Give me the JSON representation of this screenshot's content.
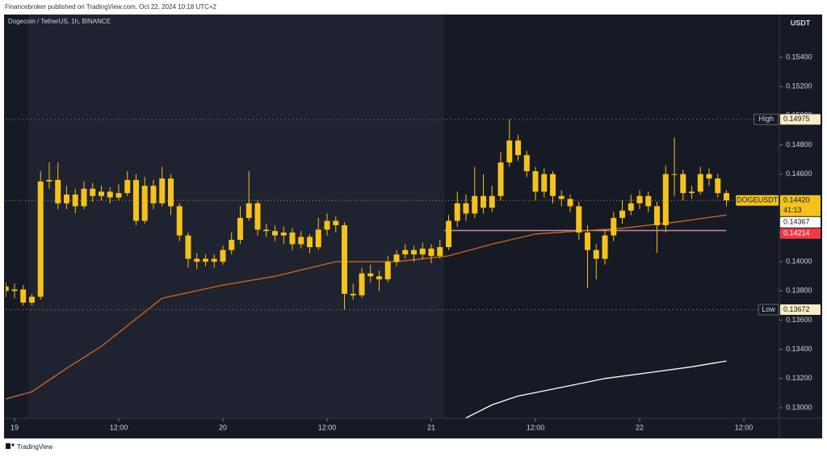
{
  "header": "Financebroker published on TradingView.com, Oct 22, 2024 10:18 UTC+2",
  "footer": "TradingView",
  "chart_data": {
    "type": "candlestick",
    "title": "Dogecoin / TetherUS, 1h, BINANCE",
    "currency": "USDT",
    "color": "#f5c21b",
    "xlim": [
      -1.02,
      88.09
    ],
    "xticks": [
      {
        "value": 0,
        "label": "19"
      },
      {
        "value": 12,
        "label": "12:00"
      },
      {
        "value": 24,
        "label": "20"
      },
      {
        "value": 36,
        "label": "12:00"
      },
      {
        "value": 48,
        "label": "21"
      },
      {
        "value": 60,
        "label": "12:00"
      },
      {
        "value": 72,
        "label": "22"
      },
      {
        "value": 84,
        "label": "12:00"
      }
    ],
    "ylim": [
      0.12928,
      0.15693
    ],
    "yticks": [
      {
        "value": 0.13,
        "label": "0.13000"
      },
      {
        "value": 0.132,
        "label": "0.13200"
      },
      {
        "value": 0.134,
        "label": "0.13400"
      },
      {
        "value": 0.136,
        "label": "0.13600"
      },
      {
        "value": 0.138,
        "label": "0.13800"
      },
      {
        "value": 0.14,
        "label": "0.14000"
      },
      {
        "value": 0.142,
        "label": "0.14200"
      },
      {
        "value": 0.144,
        "label": "0.14400"
      },
      {
        "value": 0.146,
        "label": "0.14600"
      },
      {
        "value": 0.148,
        "label": "0.14800"
      },
      {
        "value": 0.15,
        "label": "0.15000"
      },
      {
        "value": 0.152,
        "label": "0.15200"
      },
      {
        "value": 0.154,
        "label": "0.15400"
      }
    ],
    "x": [
      -1,
      0,
      1,
      2,
      3,
      4,
      5,
      6,
      7,
      8,
      9,
      10,
      11,
      12,
      13,
      14,
      15,
      16,
      17,
      18,
      19,
      20,
      21,
      22,
      23,
      24,
      25,
      26,
      27,
      28,
      29,
      30,
      31,
      32,
      33,
      34,
      35,
      36,
      37,
      38,
      39,
      40,
      41,
      42,
      43,
      44,
      45,
      46,
      47,
      48,
      49,
      50,
      51,
      52,
      53,
      54,
      55,
      56,
      57,
      58,
      59,
      60,
      61,
      62,
      63,
      64,
      65,
      66,
      67,
      68,
      69,
      70,
      71,
      72,
      73,
      74,
      75,
      76,
      77,
      78,
      79,
      80,
      81,
      82
    ],
    "open": [
      0.1383,
      0.138,
      0.1381,
      0.1372,
      0.1376,
      0.1455,
      0.1456,
      0.144,
      0.1446,
      0.1438,
      0.145,
      0.1445,
      0.1448,
      0.1444,
      0.1447,
      0.1456,
      0.1428,
      0.1452,
      0.144,
      0.1457,
      0.1438,
      0.1418,
      0.1402,
      0.14,
      0.1402,
      0.14,
      0.1408,
      0.1415,
      0.143,
      0.144,
      0.1422,
      0.1421,
      0.1418,
      0.142,
      0.1412,
      0.1417,
      0.141,
      0.1422,
      0.1428,
      0.1425,
      0.1378,
      0.1377,
      0.1392,
      0.139,
      0.1388,
      0.14,
      0.1405,
      0.1408,
      0.1405,
      0.1409,
      0.1404,
      0.141,
      0.1428,
      0.144,
      0.1433,
      0.1445,
      0.1437,
      0.1445,
      0.1468,
      0.1483,
      0.1473,
      0.1462,
      0.1448,
      0.146,
      0.1445,
      0.1443,
      0.1438,
      0.142,
      0.1408,
      0.1402,
      0.1418,
      0.143,
      0.1435,
      0.144,
      0.1445,
      0.1438,
      0.1425,
      0.146,
      0.146,
      0.1447,
      0.1448,
      0.146,
      0.1457,
      0.1447
    ],
    "high": [
      0.1386,
      0.1385,
      0.1384,
      0.1378,
      0.1462,
      0.1468,
      0.1468,
      0.1452,
      0.145,
      0.1455,
      0.1454,
      0.1452,
      0.1451,
      0.1453,
      0.1462,
      0.146,
      0.1458,
      0.1456,
      0.1465,
      0.146,
      0.144,
      0.142,
      0.1406,
      0.1405,
      0.1405,
      0.1411,
      0.142,
      0.1438,
      0.1462,
      0.1442,
      0.1426,
      0.1425,
      0.1424,
      0.1423,
      0.1421,
      0.1419,
      0.143,
      0.1433,
      0.1431,
      0.1427,
      0.1385,
      0.1396,
      0.1398,
      0.1394,
      0.1404,
      0.1408,
      0.1412,
      0.1411,
      0.1413,
      0.1412,
      0.1415,
      0.1432,
      0.1448,
      0.1446,
      0.1465,
      0.146,
      0.1452,
      0.1475,
      0.14975,
      0.1487,
      0.1476,
      0.1465,
      0.1464,
      0.1462,
      0.1449,
      0.1446,
      0.1441,
      0.1425,
      0.1412,
      0.1422,
      0.1434,
      0.1442,
      0.1446,
      0.1449,
      0.1448,
      0.1441,
      0.1466,
      0.1485,
      0.1463,
      0.1452,
      0.1465,
      0.1464,
      0.146,
      0.1449
    ],
    "low": [
      0.1376,
      0.1375,
      0.137,
      0.137,
      0.1374,
      0.145,
      0.1436,
      0.1436,
      0.1433,
      0.1436,
      0.1441,
      0.1442,
      0.144,
      0.1442,
      0.1445,
      0.1425,
      0.1426,
      0.1436,
      0.1438,
      0.1432,
      0.1414,
      0.1396,
      0.1395,
      0.1397,
      0.1396,
      0.1398,
      0.1405,
      0.1412,
      0.1428,
      0.1418,
      0.1417,
      0.1414,
      0.1412,
      0.1408,
      0.1409,
      0.1406,
      0.1408,
      0.1418,
      0.142,
      0.13672,
      0.1374,
      0.1375,
      0.1386,
      0.138,
      0.1386,
      0.1397,
      0.1402,
      0.14,
      0.1402,
      0.1399,
      0.1402,
      0.1408,
      0.1424,
      0.1428,
      0.143,
      0.1433,
      0.1434,
      0.1442,
      0.1465,
      0.1469,
      0.1458,
      0.1442,
      0.1444,
      0.144,
      0.1438,
      0.1434,
      0.1415,
      0.1382,
      0.1388,
      0.1398,
      0.1414,
      0.1426,
      0.1432,
      0.1436,
      0.1434,
      0.1406,
      0.142,
      0.1445,
      0.1442,
      0.1443,
      0.1446,
      0.1452,
      0.1444,
      0.1438
    ],
    "close": [
      0.138,
      0.1381,
      0.1372,
      0.1376,
      0.1455,
      0.1456,
      0.144,
      0.1446,
      0.1438,
      0.145,
      0.1445,
      0.1448,
      0.1444,
      0.1447,
      0.1456,
      0.1428,
      0.1452,
      0.144,
      0.1457,
      0.1438,
      0.1418,
      0.1402,
      0.14,
      0.1402,
      0.14,
      0.1408,
      0.1415,
      0.143,
      0.144,
      0.1422,
      0.1421,
      0.1418,
      0.142,
      0.1412,
      0.1417,
      0.141,
      0.1422,
      0.1428,
      0.1425,
      0.1378,
      0.1377,
      0.1392,
      0.139,
      0.1388,
      0.14,
      0.1405,
      0.1408,
      0.1405,
      0.1409,
      0.1404,
      0.141,
      0.1428,
      0.144,
      0.1433,
      0.1445,
      0.1437,
      0.1445,
      0.1468,
      0.1483,
      0.1473,
      0.1462,
      0.1448,
      0.146,
      0.1445,
      0.1443,
      0.1438,
      0.142,
      0.1408,
      0.1402,
      0.1418,
      0.143,
      0.1435,
      0.144,
      0.1445,
      0.1438,
      0.1425,
      0.146,
      0.146,
      0.1447,
      0.1448,
      0.146,
      0.1457,
      0.1447,
      0.1442
    ],
    "lines": [
      {
        "color": "#d2691e",
        "x": [
          -1,
          2,
          6,
          10,
          17,
          24,
          30,
          37,
          44,
          50,
          55,
          60,
          65,
          70,
          76,
          82
        ],
        "values": [
          0.1306,
          0.1311,
          0.1327,
          0.1342,
          0.1375,
          0.1384,
          0.139,
          0.14,
          0.14,
          0.1404,
          0.1412,
          0.1419,
          0.1421,
          0.1423,
          0.1427,
          0.1432
        ]
      },
      {
        "color": "#ffffff",
        "x": [
          52,
          55,
          58,
          63,
          68,
          73,
          78,
          82
        ],
        "values": [
          0.1293,
          0.1302,
          0.1308,
          0.1314,
          0.132,
          0.1324,
          0.1328,
          0.1332
        ]
      }
    ],
    "price_labels": [
      {
        "name": "High",
        "value": 0.14975,
        "label": "0.14975",
        "color": "#f7ecc4",
        "line": "dashed"
      },
      {
        "name": "Low",
        "value": 0.13672,
        "label": "0.13672",
        "color": "#f7ecc4",
        "line": "dashed"
      },
      {
        "name": "DOGEUSDT",
        "value": 0.1442,
        "label": "0.14420",
        "countdown": "41:13",
        "color": "#f5c21b",
        "line": "dotted"
      },
      {
        "value": 0.14367,
        "label": "0.14367",
        "color": "#ffffff"
      },
      {
        "value": 0.14214,
        "label": "0.14214",
        "color": "#f23645",
        "line": "solid",
        "line_from": 49.5
      }
    ]
  }
}
